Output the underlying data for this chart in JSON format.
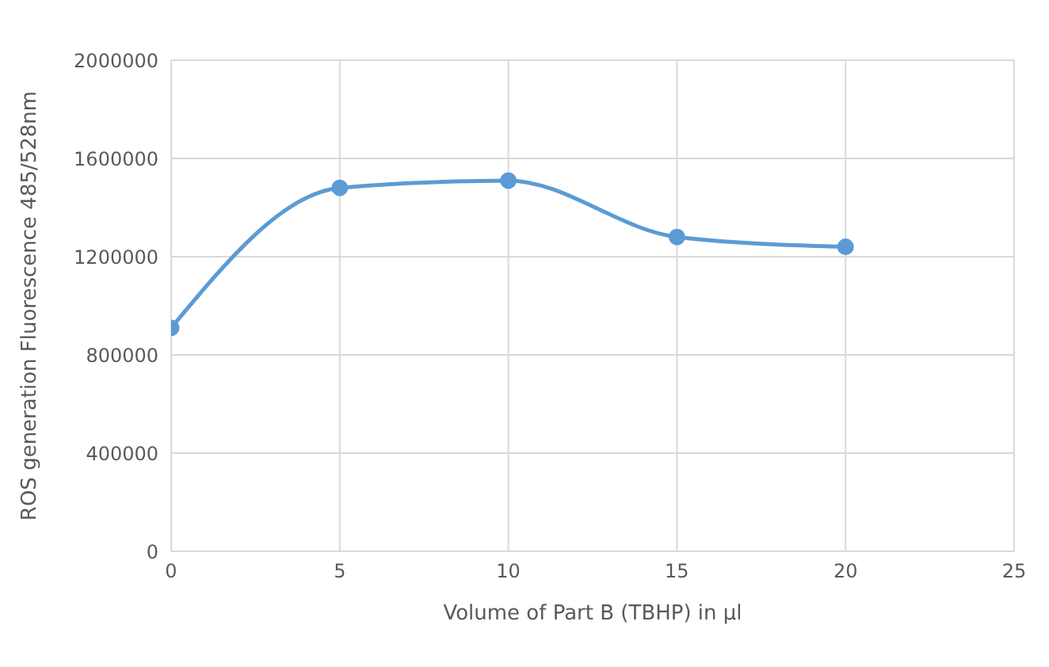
{
  "chart_data": {
    "type": "line",
    "xlabel": "Volume of Part B (TBHP)  in µl",
    "ylabel": "ROS generation Fluorescence 485/528nm",
    "x": [
      0,
      5,
      10,
      15,
      20
    ],
    "series": [
      {
        "color": "#5b9bd5",
        "values": [
          910000,
          1480000,
          1510000,
          1280000,
          1240000
        ]
      }
    ],
    "xlim": [
      0,
      25
    ],
    "xticks": [
      0,
      5,
      10,
      15,
      20,
      25
    ],
    "ylim": [
      0,
      2000000
    ],
    "yticks": [
      0,
      400000,
      800000,
      1200000,
      1600000,
      2000000
    ],
    "grid": true,
    "marker": "circle",
    "line_style": "solid",
    "legend": false
  }
}
